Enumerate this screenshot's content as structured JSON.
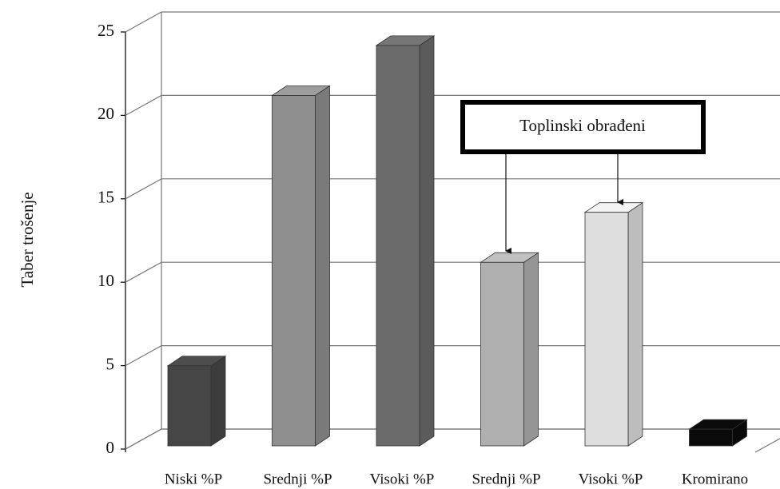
{
  "chart_data": {
    "type": "bar3d",
    "y_label": "Taber trošenje",
    "categories": [
      "Niski %P",
      "Srednji %P",
      "Visoki %P",
      "Srednji %P",
      "Visoki %P",
      "Kromirano"
    ],
    "values": [
      4.8,
      21,
      24,
      11,
      14,
      1
    ],
    "colors": [
      "#464646",
      "#8f8f8f",
      "#6b6b6b",
      "#afafaf",
      "#dedede",
      "#0a0a0a"
    ],
    "ylim": [
      0,
      25
    ],
    "yticks": [
      0,
      5,
      10,
      15,
      20,
      25
    ],
    "grid": true,
    "annotation": "Toplinski obrađeni"
  }
}
